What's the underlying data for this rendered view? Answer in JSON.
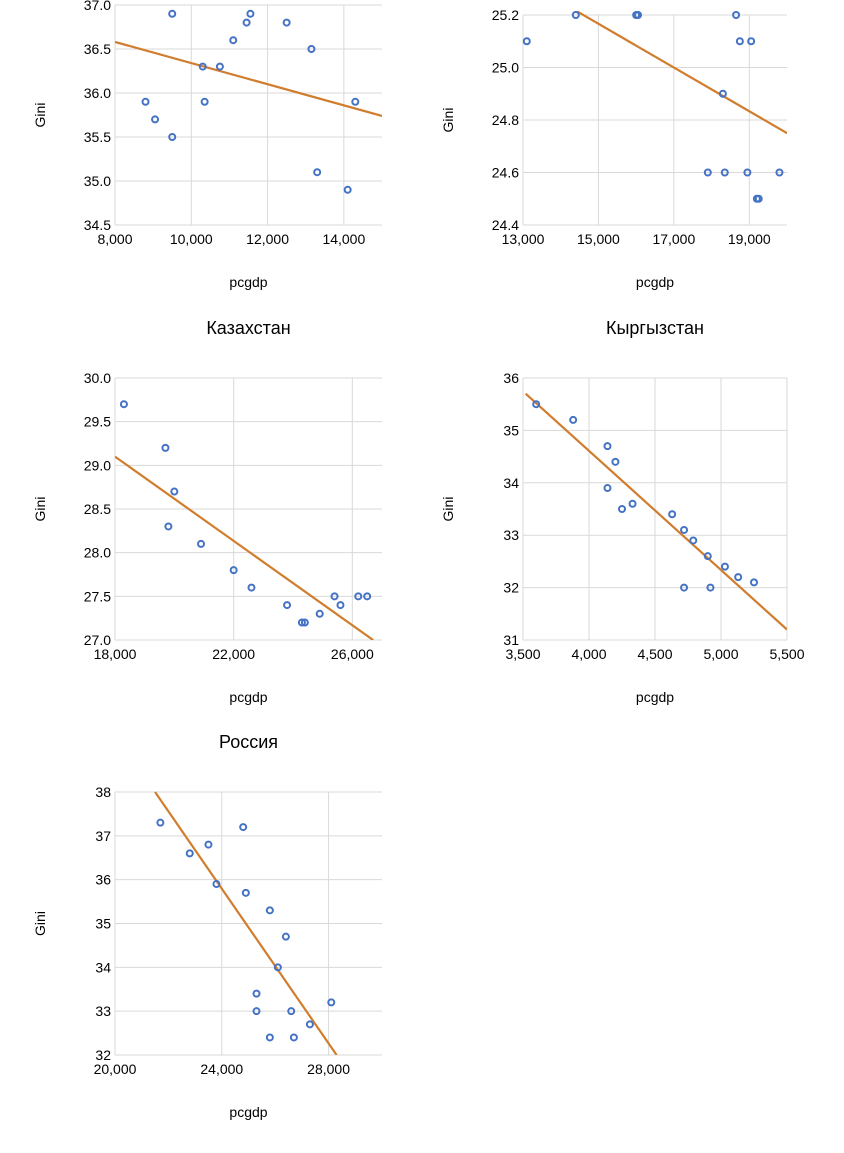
{
  "colors": {
    "point": "#4472C4",
    "trend": "#D07D2E",
    "grid": "#D9D9D9",
    "text": "#000000"
  },
  "chart_data": [
    {
      "type": "scatter",
      "title": "",
      "xlabel": "pcgdp",
      "ylabel": "Gini",
      "xlim": [
        8000,
        15000
      ],
      "ylim": [
        34.5,
        37.0
      ],
      "xticks": [
        8000,
        10000,
        12000,
        14000
      ],
      "xtick_labels": [
        "8,000",
        "10,000",
        "12,000",
        "14,000"
      ],
      "yticks": [
        34.5,
        35.0,
        35.5,
        36.0,
        36.5,
        37.0
      ],
      "ytick_labels": [
        "34.5",
        "35.0",
        "35.5",
        "36.0",
        "36.5",
        "37.0"
      ],
      "points": [
        [
          8800,
          35.9
        ],
        [
          9050,
          35.7
        ],
        [
          9500,
          36.9
        ],
        [
          9500,
          35.5
        ],
        [
          10300,
          36.3
        ],
        [
          10350,
          35.9
        ],
        [
          10750,
          36.3
        ],
        [
          11100,
          36.6
        ],
        [
          11450,
          36.8
        ],
        [
          11550,
          36.9
        ],
        [
          12500,
          36.8
        ],
        [
          13150,
          36.5
        ],
        [
          13300,
          35.1
        ],
        [
          14100,
          34.9
        ],
        [
          14300,
          35.9
        ]
      ],
      "trendline": [
        [
          8000,
          36.58
        ],
        [
          15000,
          35.74
        ]
      ]
    },
    {
      "type": "scatter",
      "title": "",
      "xlabel": "pcgdp",
      "ylabel": "Gini",
      "xlim": [
        13000,
        20000
      ],
      "ylim": [
        24.4,
        25.2
      ],
      "xticks": [
        13000,
        15000,
        17000,
        19000
      ],
      "xtick_labels": [
        "13,000",
        "15,000",
        "17,000",
        "19,000"
      ],
      "yticks": [
        24.4,
        24.6,
        24.8,
        25.0,
        25.2
      ],
      "ytick_labels": [
        "24.4",
        "24.6",
        "24.8",
        "25.0",
        "25.2"
      ],
      "points": [
        [
          13100,
          25.1
        ],
        [
          14400,
          25.2
        ],
        [
          16000,
          25.2
        ],
        [
          16050,
          25.2
        ],
        [
          17900,
          24.6
        ],
        [
          18300,
          24.9
        ],
        [
          18350,
          24.6
        ],
        [
          18650,
          25.2
        ],
        [
          18750,
          25.1
        ],
        [
          18950,
          24.6
        ],
        [
          19050,
          25.1
        ],
        [
          19200,
          24.5
        ],
        [
          19250,
          24.5
        ],
        [
          19800,
          24.6
        ]
      ],
      "trendline": [
        [
          14000,
          25.25
        ],
        [
          20000,
          24.75
        ]
      ]
    },
    {
      "type": "scatter",
      "title": "Казахстан",
      "xlabel": "pcgdp",
      "ylabel": "Gini",
      "xlim": [
        18000,
        27000
      ],
      "ylim": [
        27.0,
        30.0
      ],
      "xticks": [
        18000,
        22000,
        26000
      ],
      "xtick_labels": [
        "18,000",
        "22,000",
        "26,000"
      ],
      "yticks": [
        27.0,
        27.5,
        28.0,
        28.5,
        29.0,
        29.5,
        30.0
      ],
      "ytick_labels": [
        "27.0",
        "27.5",
        "28.0",
        "28.5",
        "29.0",
        "29.5",
        "30.0"
      ],
      "points": [
        [
          18300,
          29.7
        ],
        [
          19700,
          29.2
        ],
        [
          19800,
          28.3
        ],
        [
          20000,
          28.7
        ],
        [
          20900,
          28.1
        ],
        [
          22000,
          27.8
        ],
        [
          22600,
          27.6
        ],
        [
          23800,
          27.4
        ],
        [
          24300,
          27.2
        ],
        [
          24400,
          27.2
        ],
        [
          24900,
          27.3
        ],
        [
          25400,
          27.5
        ],
        [
          25600,
          27.4
        ],
        [
          26200,
          27.5
        ],
        [
          26500,
          27.5
        ]
      ],
      "trendline": [
        [
          18000,
          29.1
        ],
        [
          26700,
          27.0
        ]
      ]
    },
    {
      "type": "scatter",
      "title": "Кыргызстан",
      "xlabel": "pcgdp",
      "ylabel": "Gini",
      "xlim": [
        3500,
        5500
      ],
      "ylim": [
        31,
        36
      ],
      "xticks": [
        3500,
        4000,
        4500,
        5000,
        5500
      ],
      "xtick_labels": [
        "3,500",
        "4,000",
        "4,500",
        "5,000",
        "5,500"
      ],
      "yticks": [
        31,
        32,
        33,
        34,
        35,
        36
      ],
      "ytick_labels": [
        "31",
        "32",
        "33",
        "34",
        "35",
        "36"
      ],
      "points": [
        [
          3600,
          35.5
        ],
        [
          3880,
          35.2
        ],
        [
          4140,
          34.7
        ],
        [
          4140,
          33.9
        ],
        [
          4200,
          34.4
        ],
        [
          4250,
          33.5
        ],
        [
          4330,
          33.6
        ],
        [
          4630,
          33.4
        ],
        [
          4720,
          33.1
        ],
        [
          4720,
          32.0
        ],
        [
          4790,
          32.9
        ],
        [
          4900,
          32.6
        ],
        [
          4920,
          32.0
        ],
        [
          5030,
          32.4
        ],
        [
          5130,
          32.2
        ],
        [
          5250,
          32.1
        ]
      ],
      "trendline": [
        [
          3520,
          35.7
        ],
        [
          5500,
          31.2
        ]
      ]
    },
    {
      "type": "scatter",
      "title": "Россия",
      "xlabel": "pcgdp",
      "ylabel": "Gini",
      "xlim": [
        20000,
        30000
      ],
      "ylim": [
        32,
        38
      ],
      "xticks": [
        20000,
        24000,
        28000
      ],
      "xtick_labels": [
        "20,000",
        "24,000",
        "28,000"
      ],
      "yticks": [
        32,
        33,
        34,
        35,
        36,
        37,
        38
      ],
      "ytick_labels": [
        "32",
        "33",
        "34",
        "35",
        "36",
        "37",
        "38"
      ],
      "points": [
        [
          21700,
          37.3
        ],
        [
          22800,
          36.6
        ],
        [
          23500,
          36.8
        ],
        [
          23800,
          35.9
        ],
        [
          24800,
          37.2
        ],
        [
          24900,
          35.7
        ],
        [
          25300,
          33.4
        ],
        [
          25300,
          33.0
        ],
        [
          25800,
          35.3
        ],
        [
          25800,
          32.4
        ],
        [
          26100,
          34.0
        ],
        [
          26400,
          34.7
        ],
        [
          26600,
          33.0
        ],
        [
          26700,
          32.4
        ],
        [
          27300,
          32.7
        ],
        [
          28100,
          33.2
        ]
      ],
      "trendline": [
        [
          21500,
          38.0
        ],
        [
          28300,
          32.0
        ]
      ]
    }
  ]
}
